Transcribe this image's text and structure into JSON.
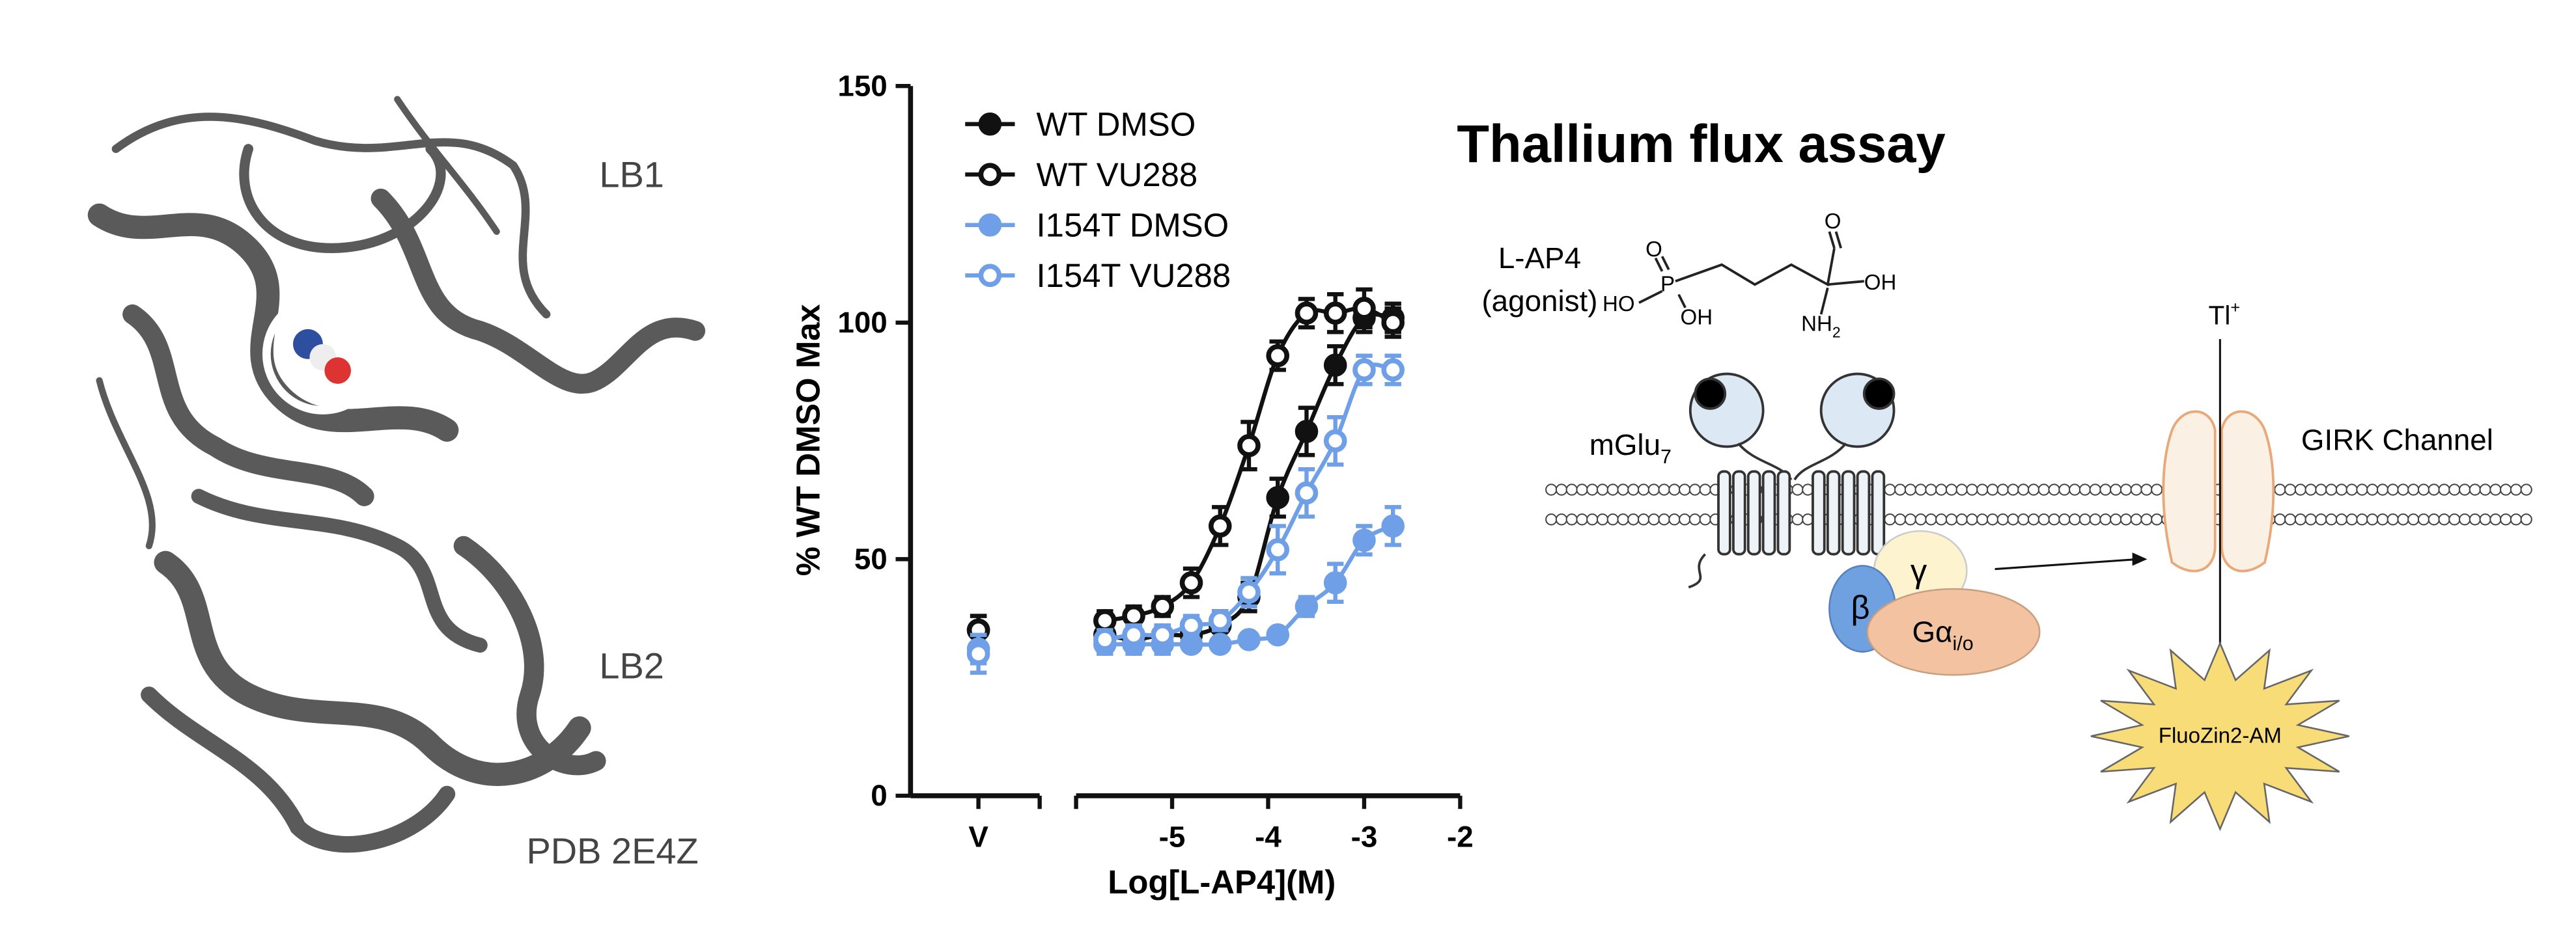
{
  "structure_labels": {
    "lb1": "LB1",
    "lb2": "LB2",
    "pdb": "PDB 2E4Z"
  },
  "chart_data": {
    "type": "line",
    "y_label": "% WT DMSO Max",
    "x_label": "Log[L-AP4](M)",
    "vehicle_label": "V",
    "x": [
      -5.7,
      -5.4,
      -5.1,
      -4.8,
      -4.5,
      -4.2,
      -3.9,
      -3.6,
      -3.3,
      -3.0,
      -2.7
    ],
    "xlim": [
      -6,
      -2
    ],
    "xticks": [
      -5,
      -4,
      -3,
      -2
    ],
    "ylim": [
      0,
      150
    ],
    "yticks": [
      0,
      50,
      100,
      150
    ],
    "series": [
      {
        "name": "WT DMSO",
        "color": "#111111",
        "filled": true,
        "vehicle": 35,
        "vehicle_error": 3,
        "values": [
          34,
          33,
          34,
          34,
          36,
          42,
          63,
          77,
          91,
          101,
          101
        ],
        "errors": [
          2,
          2,
          2,
          2,
          3,
          3,
          4,
          5,
          4,
          3,
          3
        ]
      },
      {
        "name": "WT VU288",
        "color": "#111111",
        "filled": false,
        "vehicle": 35,
        "vehicle_error": 3,
        "values": [
          37,
          38,
          40,
          45,
          57,
          74,
          93,
          102,
          102,
          103,
          100
        ],
        "errors": [
          2,
          2,
          2,
          3,
          4,
          5,
          3,
          3,
          4,
          4,
          3
        ]
      },
      {
        "name": "I154T DMSO",
        "color": "#6f9fe6",
        "filled": true,
        "vehicle": 31,
        "vehicle_error": 3,
        "values": [
          32,
          32,
          32,
          32,
          32,
          33,
          34,
          40,
          45,
          54,
          57
        ],
        "errors": [
          2,
          2,
          2,
          1,
          1,
          1,
          1,
          2,
          4,
          3,
          4
        ]
      },
      {
        "name": "I154T VU288",
        "color": "#6f9fe6",
        "filled": false,
        "vehicle": 30,
        "vehicle_error": 4,
        "values": [
          33,
          34,
          34,
          36,
          37,
          43,
          52,
          64,
          75,
          90,
          90
        ],
        "errors": [
          2,
          2,
          2,
          2,
          2,
          3,
          5,
          5,
          5,
          3,
          3
        ]
      }
    ]
  },
  "diagram": {
    "title": "Thallium flux assay",
    "agonist_name": "L-AP4",
    "agonist_note": "(agonist)",
    "chem": {
      "o1": "O",
      "p": "P",
      "ho": "HO",
      "oh1": "OH",
      "nh": "NH",
      "nh_sub": "2",
      "o2": "O",
      "oh2": "OH"
    },
    "receptor": {
      "text": "mGlu",
      "sub": "7"
    },
    "ion": {
      "text": "Tl",
      "sup": "+"
    },
    "channel": "GIRK Channel",
    "beta": "β",
    "gamma": "γ",
    "galpha": {
      "text": "Gα",
      "sub": "i/o"
    },
    "dye": "FluoZin2-AM"
  }
}
